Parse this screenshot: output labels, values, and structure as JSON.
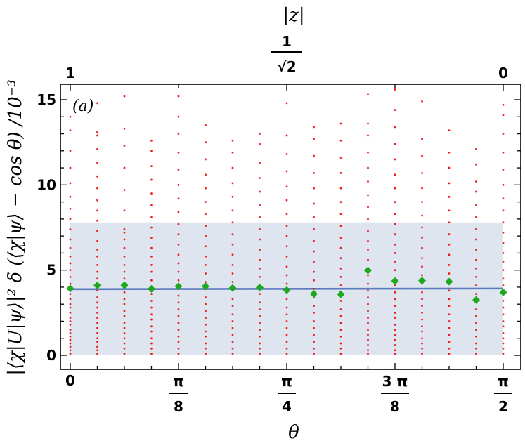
{
  "chart_data": {
    "type": "scatter",
    "panel_label": "(a)",
    "xlabel": "θ",
    "top_xlabel": "|z|",
    "ylabel": "|⟨χ|U|ψ⟩|² δ (⟨χ|ψ⟩ − cos θ) /10⁻³",
    "xlim": [
      0,
      1.5708
    ],
    "ylim": [
      0,
      15.6
    ],
    "x_ticks": [
      {
        "value": 0,
        "num": "0",
        "den": ""
      },
      {
        "value": 0.3927,
        "num": "π",
        "den": "8"
      },
      {
        "value": 0.7854,
        "num": "π",
        "den": "4"
      },
      {
        "value": 1.1781,
        "num": "3 π",
        "den": "8"
      },
      {
        "value": 1.5708,
        "num": "π",
        "den": "2"
      }
    ],
    "top_ticks": [
      {
        "value": 0,
        "num": "1",
        "den": ""
      },
      {
        "value": 0.7854,
        "num": "1",
        "den": "√2"
      },
      {
        "value": 1.5708,
        "num": "0",
        "den": ""
      }
    ],
    "y_ticks": [
      0,
      5,
      10,
      15
    ],
    "grid": false,
    "band": {
      "low": 0,
      "high": 7.8,
      "color": "#dfe5ef"
    },
    "fit_line": {
      "x": [
        0,
        1.5708
      ],
      "y": [
        3.88,
        3.92
      ],
      "color": "#5b7bbf"
    },
    "means": {
      "name": "mean",
      "color": "#1ea81e",
      "x": [
        0,
        0.1963,
        0.3927,
        0.589,
        0.7854,
        0.9817,
        1.1781,
        1.3744,
        1.5708,
        0.0982,
        0.2945,
        0.4909,
        0.6872,
        0.8836,
        1.0799,
        1.2763,
        1.4726
      ],
      "y": [
        3.92,
        4.11,
        4.05,
        3.95,
        3.82,
        3.58,
        4.36,
        4.32,
        3.7,
        4.1,
        3.9,
        4.05,
        3.98,
        3.6,
        4.98,
        4.38,
        3.25
      ]
    },
    "samples": {
      "color": "#ee1c1c",
      "columns": [
        {
          "x": 0.0,
          "y": [
            0.1,
            0.3,
            0.5,
            0.7,
            0.9,
            1.1,
            1.3,
            1.5,
            1.8,
            2.0,
            2.2,
            2.5,
            2.8,
            3.0,
            3.3,
            3.6,
            3.9,
            4.2,
            4.6,
            5.0,
            5.4,
            5.8,
            6.3,
            6.8,
            7.4,
            8.0,
            8.6,
            9.3,
            10.1,
            11.0,
            12.0,
            13.2,
            14.0
          ]
        },
        {
          "x": 0.0982,
          "y": [
            0.1,
            0.3,
            0.5,
            0.8,
            1.0,
            1.3,
            1.6,
            1.9,
            2.2,
            2.5,
            2.8,
            3.1,
            3.4,
            3.8,
            4.1,
            4.5,
            4.9,
            5.3,
            5.8,
            6.2,
            6.7,
            7.3,
            7.9,
            8.5,
            9.1,
            9.8,
            10.5,
            11.3,
            12.1,
            12.9,
            13.1,
            14.8
          ]
        },
        {
          "x": 0.1963,
          "y": [
            0.1,
            0.4,
            0.7,
            1.0,
            1.3,
            1.6,
            1.9,
            2.3,
            2.6,
            3.0,
            3.3,
            3.7,
            4.1,
            4.5,
            4.9,
            5.3,
            5.8,
            6.3,
            6.8,
            7.2,
            7.4,
            8.5,
            9.7,
            11.0,
            12.3,
            13.3,
            15.2
          ]
        },
        {
          "x": 0.2945,
          "y": [
            0.1,
            0.4,
            0.7,
            1.0,
            1.4,
            1.7,
            2.1,
            2.4,
            2.8,
            3.2,
            3.6,
            4.0,
            4.4,
            4.9,
            5.3,
            5.8,
            6.3,
            6.9,
            7.5,
            8.1,
            8.8,
            9.5,
            10.3,
            11.1,
            12.0,
            12.6
          ]
        },
        {
          "x": 0.3927,
          "y": [
            0.1,
            0.4,
            0.8,
            1.1,
            1.5,
            1.9,
            2.3,
            2.7,
            3.1,
            3.5,
            4.0,
            4.4,
            4.9,
            5.4,
            5.9,
            6.5,
            7.1,
            7.7,
            8.4,
            9.2,
            10.0,
            10.9,
            11.9,
            13.0,
            14.0,
            15.2
          ]
        },
        {
          "x": 0.4909,
          "y": [
            0.1,
            0.4,
            0.7,
            1.1,
            1.4,
            1.8,
            2.2,
            2.6,
            3.0,
            3.4,
            3.9,
            4.3,
            4.8,
            5.3,
            5.8,
            6.4,
            7.0,
            7.6,
            8.3,
            9.0,
            9.8,
            10.6,
            11.5,
            12.5,
            13.5
          ]
        },
        {
          "x": 0.589,
          "y": [
            0.1,
            0.4,
            0.8,
            1.2,
            1.6,
            2.0,
            2.4,
            2.9,
            3.3,
            3.8,
            4.3,
            4.8,
            5.3,
            5.9,
            6.5,
            7.1,
            7.8,
            8.5,
            9.3,
            10.1,
            11.0,
            11.9,
            12.6
          ]
        },
        {
          "x": 0.6872,
          "y": [
            0.1,
            0.4,
            0.7,
            1.1,
            1.5,
            1.9,
            2.3,
            2.7,
            3.1,
            3.6,
            4.1,
            4.6,
            5.1,
            5.6,
            6.2,
            6.8,
            7.4,
            8.1,
            8.8,
            9.6,
            10.4,
            11.3,
            12.4,
            13.0
          ]
        },
        {
          "x": 0.7854,
          "y": [
            0.1,
            0.4,
            0.8,
            1.2,
            1.6,
            2.0,
            2.4,
            2.8,
            3.3,
            3.7,
            4.2,
            4.7,
            5.2,
            5.8,
            6.4,
            7.0,
            7.6,
            8.3,
            9.1,
            9.9,
            10.8,
            11.8,
            12.9,
            14.8
          ]
        },
        {
          "x": 0.8836,
          "y": [
            0.1,
            0.4,
            0.8,
            1.2,
            1.6,
            2.0,
            2.5,
            2.9,
            3.4,
            3.9,
            4.4,
            4.9,
            5.5,
            6.1,
            6.7,
            7.4,
            8.1,
            8.9,
            9.8,
            10.7,
            11.7,
            12.7,
            13.4
          ]
        },
        {
          "x": 0.9817,
          "y": [
            0.1,
            0.4,
            0.7,
            1.1,
            1.5,
            1.9,
            2.3,
            2.7,
            3.2,
            3.6,
            4.1,
            4.6,
            5.1,
            5.7,
            6.3,
            6.9,
            7.6,
            8.3,
            9.0,
            9.8,
            10.7,
            11.6,
            12.6,
            13.6
          ]
        },
        {
          "x": 1.0799,
          "y": [
            0.1,
            0.3,
            0.6,
            0.9,
            1.2,
            1.5,
            1.9,
            2.2,
            2.6,
            3.0,
            3.4,
            3.8,
            4.2,
            4.7,
            5.1,
            5.6,
            6.2,
            6.7,
            7.3,
            8.0,
            8.7,
            9.4,
            10.2,
            11.0,
            11.9,
            12.9,
            13.6,
            15.3
          ]
        },
        {
          "x": 1.1781,
          "y": [
            0.1,
            0.3,
            0.6,
            0.9,
            1.2,
            1.5,
            1.8,
            2.2,
            2.5,
            2.9,
            3.3,
            3.7,
            4.1,
            4.5,
            5.0,
            5.5,
            6.0,
            6.5,
            7.1,
            7.7,
            8.3,
            9.0,
            9.8,
            10.6,
            11.5,
            12.4,
            13.4,
            14.4,
            15.6
          ]
        },
        {
          "x": 1.2763,
          "y": [
            0.1,
            0.4,
            0.7,
            1.0,
            1.4,
            1.7,
            2.1,
            2.5,
            2.9,
            3.3,
            3.7,
            4.2,
            4.7,
            5.2,
            5.7,
            6.3,
            6.9,
            7.5,
            8.2,
            9.0,
            9.8,
            10.7,
            11.7,
            12.7,
            14.9
          ]
        },
        {
          "x": 1.3744,
          "y": [
            0.1,
            0.4,
            0.8,
            1.2,
            1.6,
            2.0,
            2.4,
            2.9,
            3.3,
            3.8,
            4.3,
            4.8,
            5.3,
            5.9,
            6.5,
            7.1,
            7.8,
            8.5,
            9.3,
            10.1,
            11.0,
            11.9,
            13.2
          ]
        },
        {
          "x": 1.4726,
          "y": [
            0.1,
            0.4,
            0.7,
            1.1,
            1.5,
            1.9,
            2.3,
            2.7,
            3.1,
            3.6,
            4.1,
            4.6,
            5.1,
            5.6,
            6.2,
            6.8,
            7.4,
            8.1,
            8.8,
            9.6,
            10.2,
            11.2,
            12.1
          ]
        },
        {
          "x": 1.5708,
          "y": [
            0.1,
            0.4,
            0.7,
            1.0,
            1.3,
            1.7,
            2.0,
            2.4,
            2.8,
            3.2,
            3.6,
            4.1,
            4.5,
            5.0,
            5.5,
            6.0,
            6.6,
            7.2,
            7.8,
            8.5,
            9.2,
            10.0,
            10.9,
            11.9,
            13.0,
            14.1,
            14.7
          ]
        }
      ]
    }
  }
}
